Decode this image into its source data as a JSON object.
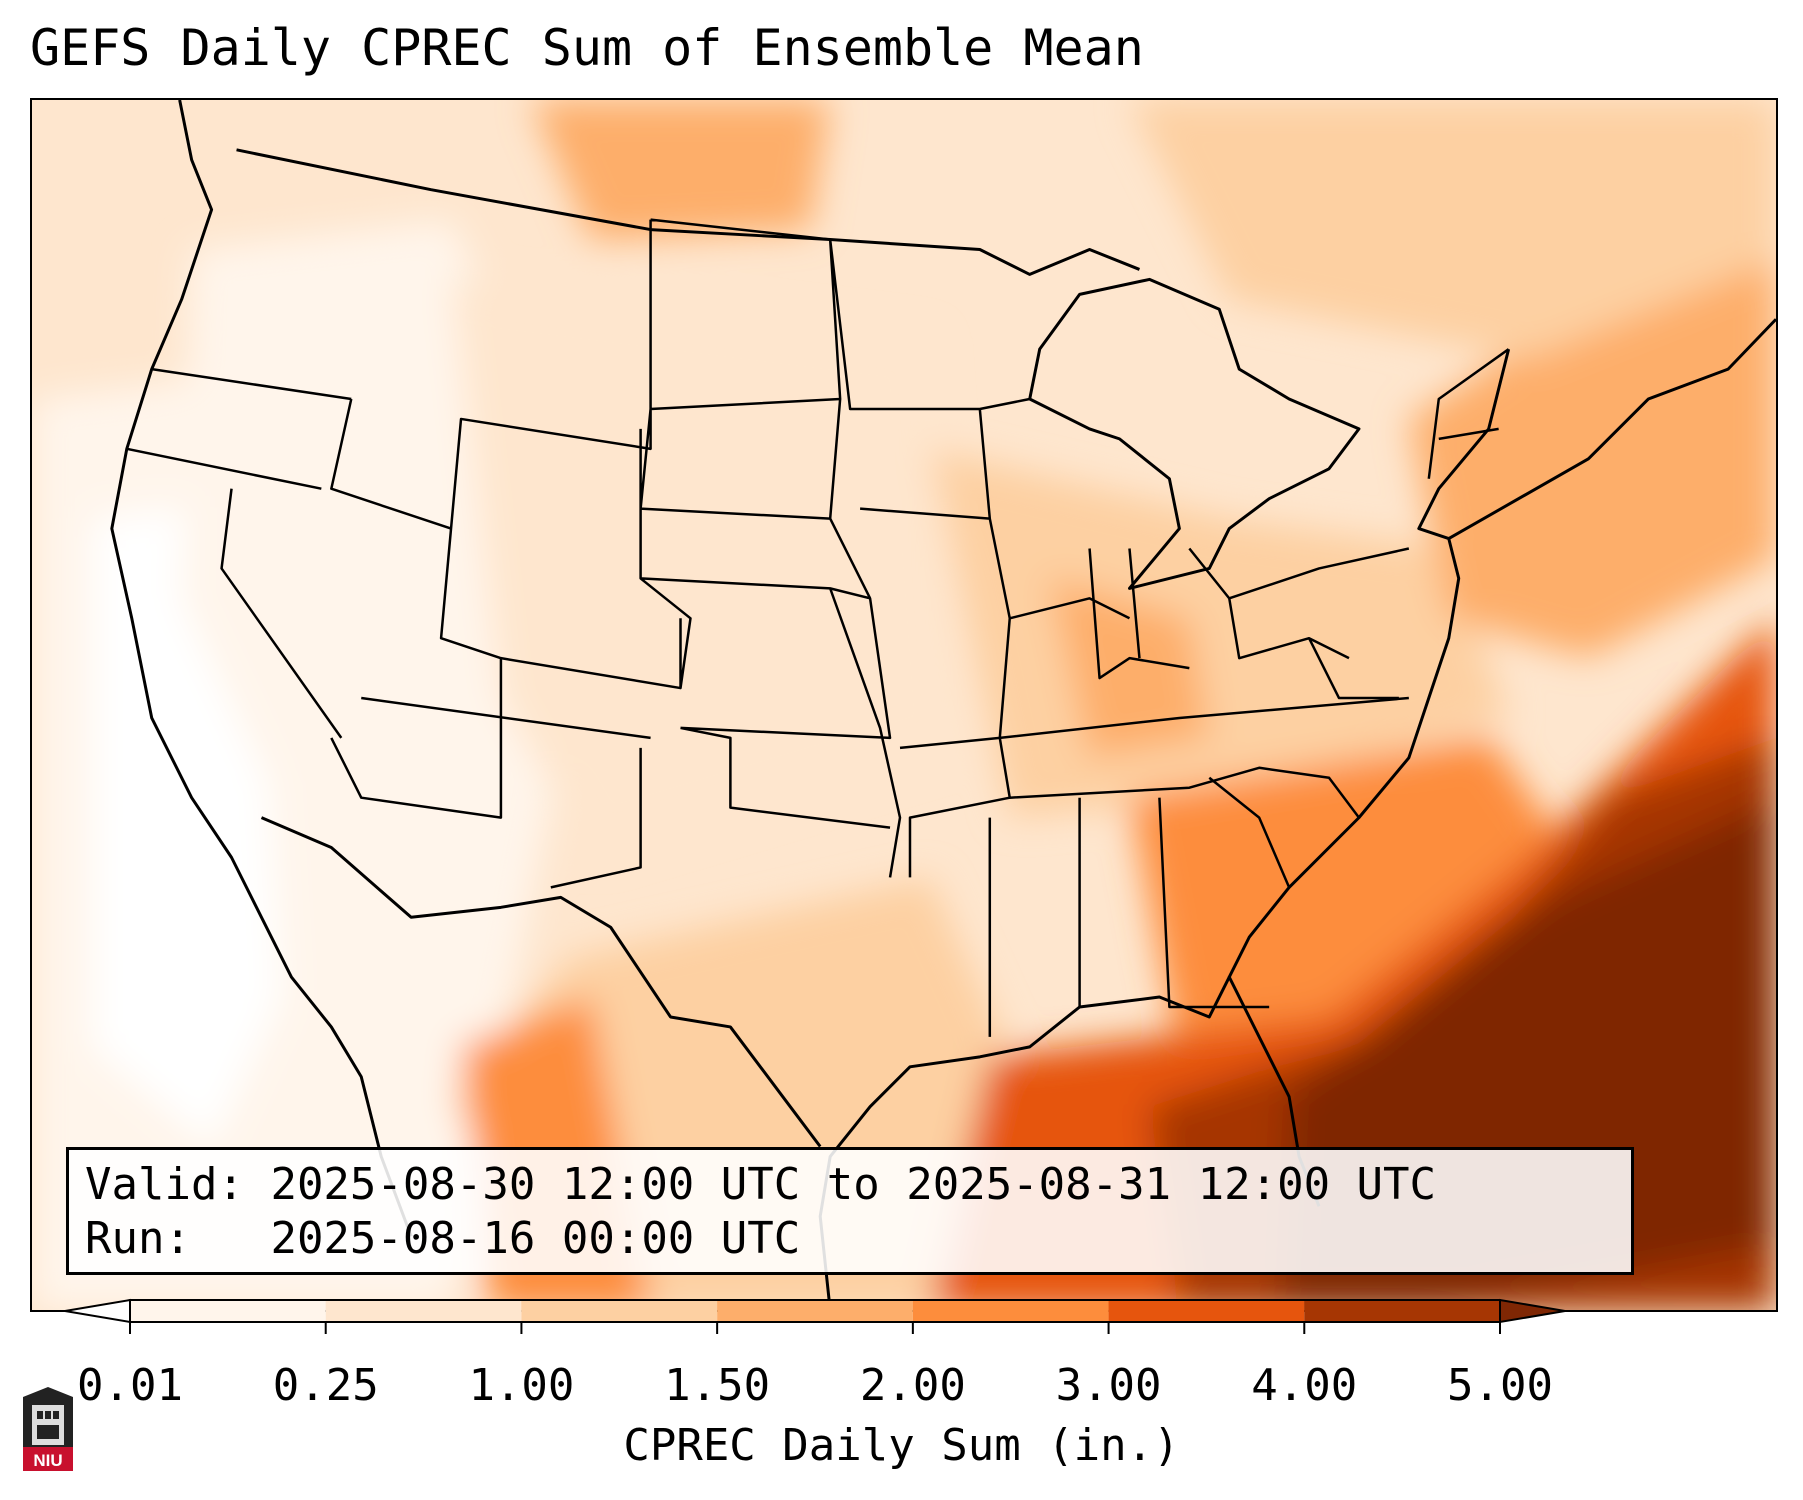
{
  "title": "GEFS Daily CPREC Sum of Ensemble Mean",
  "info": {
    "valid_label": "Valid:",
    "valid_value": "2025-08-30 12:00 UTC to 2025-08-31 12:00 UTC",
    "run_label": "Run:",
    "run_value": "2025-08-16 00:00 UTC"
  },
  "colorbar": {
    "label": "CPREC Daily Sum (in.)",
    "ticks": [
      "0.01",
      "0.25",
      "1.00",
      "1.50",
      "2.00",
      "3.00",
      "4.00",
      "5.00"
    ],
    "colors": [
      "#fff5eb",
      "#fee6ce",
      "#fdd0a2",
      "#fdae6b",
      "#fd8d3c",
      "#e6550d",
      "#a63603",
      "#7f2704"
    ],
    "under_color": "#ffffff",
    "over_color": "#7f2704"
  },
  "logo": {
    "text": "NIU",
    "color": "#c8102e"
  }
}
